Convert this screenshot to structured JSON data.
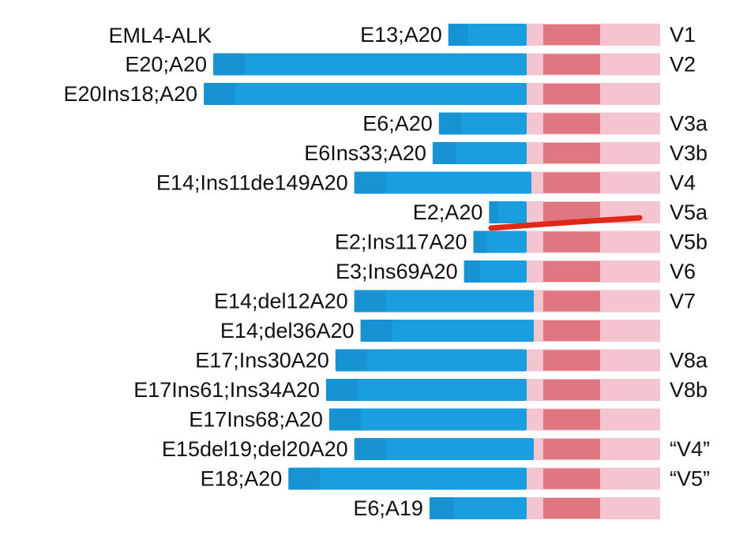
{
  "title": "EML4-ALK",
  "colors": {
    "eml4": "#1a9ee0",
    "eml4_dark": "#1588c8",
    "alk_light": "#f4c4cf",
    "alk_kinase": "#e0767f",
    "marker_line": "#e02818"
  },
  "variants": [
    {
      "label": "E13;A20",
      "version": "V1",
      "eml4_start": 0.75,
      "alk_start_offset": 0
    },
    {
      "label": "E20;A20",
      "version": "V2",
      "eml4_start": 0.0,
      "alk_start_offset": 0
    },
    {
      "label": "E20Ins18;A20",
      "version": "",
      "eml4_start": -0.03,
      "alk_start_offset": 0
    },
    {
      "label": "E6;A20",
      "version": "V3a",
      "eml4_start": 0.72,
      "alk_start_offset": 0
    },
    {
      "label": "E6Ins33;A20",
      "version": "V3b",
      "eml4_start": 0.7,
      "alk_start_offset": 0
    },
    {
      "label": "E14;Ins11de149A20",
      "version": "V4",
      "eml4_start": 0.45,
      "alk_start_offset": 0.02
    },
    {
      "label": "E2;A20",
      "version": "V5a",
      "eml4_start": 0.88,
      "alk_start_offset": 0
    },
    {
      "label": "E2;Ins117A20",
      "version": "V5b",
      "eml4_start": 0.83,
      "alk_start_offset": 0
    },
    {
      "label": "E3;Ins69A20",
      "version": "V6",
      "eml4_start": 0.8,
      "alk_start_offset": 0
    },
    {
      "label": "E14;del12A20",
      "version": "V7",
      "eml4_start": 0.45,
      "alk_start_offset": 0.03
    },
    {
      "label": "E14;del36A20",
      "version": "",
      "eml4_start": 0.47,
      "alk_start_offset": 0.03
    },
    {
      "label": "E17;Ins30A20",
      "version": "V8a",
      "eml4_start": 0.39,
      "alk_start_offset": 0
    },
    {
      "label": "E17Ins61;Ins34A20",
      "version": "V8b",
      "eml4_start": 0.36,
      "alk_start_offset": 0
    },
    {
      "label": "E17Ins68;A20",
      "version": "",
      "eml4_start": 0.37,
      "alk_start_offset": 0
    },
    {
      "label": "E15del19;del20A20",
      "version": "“V4”",
      "eml4_start": 0.45,
      "alk_start_offset": 0.03
    },
    {
      "label": "E18;A20",
      "version": "“V5”",
      "eml4_start": 0.24,
      "alk_start_offset": 0
    },
    {
      "label": "E6;A19",
      "version": "",
      "eml4_start": 0.69,
      "alk_start_offset": 0
    }
  ]
}
